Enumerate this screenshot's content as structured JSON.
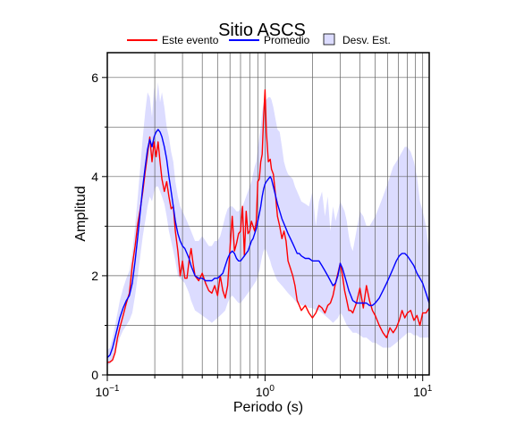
{
  "chart_data": {
    "type": "line",
    "title": "Sitio ASCS",
    "xlabel": "Periodo (s)",
    "ylabel": "Amplitud",
    "xscale": "log",
    "xlim": [
      0.1,
      11
    ],
    "ylim": [
      0,
      6.5
    ],
    "x_ticks": [
      {
        "value": 0.1,
        "base": "10",
        "exp": "−1"
      },
      {
        "value": 1,
        "base": "10",
        "exp": "0"
      },
      {
        "value": 10,
        "base": "10",
        "exp": "1"
      }
    ],
    "y_ticks": [
      {
        "value": 0,
        "label": "0"
      },
      {
        "value": 2,
        "label": "2"
      },
      {
        "value": 4,
        "label": "4"
      },
      {
        "value": 6,
        "label": "6"
      }
    ],
    "grid": true,
    "legend_position": "top",
    "colors": {
      "evento": "#ff0000",
      "promedio": "#0000ff",
      "desv_fill": "#dcdcff"
    },
    "series": [
      {
        "name": "Este evento",
        "color": "#ff0000",
        "x": [
          0.1,
          0.104,
          0.108,
          0.112,
          0.116,
          0.12,
          0.126,
          0.132,
          0.138,
          0.144,
          0.15,
          0.156,
          0.162,
          0.168,
          0.174,
          0.18,
          0.186,
          0.192,
          0.198,
          0.204,
          0.21,
          0.216,
          0.222,
          0.23,
          0.238,
          0.246,
          0.254,
          0.262,
          0.27,
          0.28,
          0.29,
          0.3,
          0.31,
          0.32,
          0.33,
          0.34,
          0.35,
          0.36,
          0.38,
          0.4,
          0.42,
          0.44,
          0.46,
          0.48,
          0.5,
          0.52,
          0.54,
          0.56,
          0.58,
          0.6,
          0.62,
          0.64,
          0.66,
          0.68,
          0.7,
          0.72,
          0.74,
          0.76,
          0.78,
          0.8,
          0.82,
          0.84,
          0.86,
          0.88,
          0.9,
          0.92,
          0.94,
          0.96,
          0.98,
          1.0,
          1.02,
          1.05,
          1.08,
          1.1,
          1.13,
          1.16,
          1.2,
          1.24,
          1.28,
          1.32,
          1.36,
          1.4,
          1.45,
          1.5,
          1.55,
          1.6,
          1.65,
          1.7,
          1.8,
          1.9,
          2.0,
          2.1,
          2.2,
          2.3,
          2.4,
          2.5,
          2.6,
          2.7,
          2.8,
          2.9,
          3.0,
          3.1,
          3.2,
          3.3,
          3.4,
          3.5,
          3.6,
          3.8,
          4.0,
          4.2,
          4.4,
          4.6,
          4.8,
          5.0,
          5.3,
          5.6,
          5.9,
          6.2,
          6.5,
          6.8,
          7.1,
          7.4,
          7.7,
          8.0,
          8.4,
          8.8,
          9.2,
          9.6,
          10.0,
          10.5,
          11.0
        ],
        "values": [
          0.25,
          0.26,
          0.3,
          0.45,
          0.75,
          0.95,
          1.2,
          1.45,
          1.65,
          2.2,
          2.6,
          3.05,
          3.35,
          3.7,
          4.1,
          4.45,
          4.8,
          4.3,
          4.7,
          4.4,
          4.7,
          4.3,
          3.95,
          3.7,
          3.9,
          3.6,
          3.35,
          3.4,
          2.9,
          2.5,
          2.0,
          2.3,
          1.95,
          1.95,
          2.3,
          2.55,
          2.25,
          2.0,
          1.9,
          2.05,
          1.85,
          1.7,
          1.65,
          1.8,
          1.6,
          2.0,
          1.7,
          1.55,
          1.8,
          2.55,
          3.2,
          2.5,
          2.65,
          2.85,
          2.9,
          3.4,
          2.4,
          3.3,
          2.85,
          2.9,
          3.1,
          3.0,
          2.9,
          3.1,
          3.9,
          3.95,
          4.3,
          4.45,
          5.2,
          5.75,
          4.9,
          4.3,
          4.35,
          4.15,
          4.05,
          3.7,
          3.2,
          3.0,
          2.75,
          2.9,
          2.7,
          2.3,
          2.15,
          2.0,
          1.8,
          1.5,
          1.4,
          1.3,
          1.4,
          1.25,
          1.15,
          1.25,
          1.4,
          1.35,
          1.25,
          1.4,
          1.45,
          1.6,
          1.85,
          2.05,
          2.25,
          2.0,
          1.7,
          1.5,
          1.3,
          1.3,
          1.25,
          1.45,
          1.75,
          1.35,
          1.8,
          1.5,
          1.3,
          1.2,
          1.0,
          0.85,
          0.75,
          0.95,
          0.85,
          0.95,
          1.1,
          1.3,
          1.15,
          1.25,
          1.3,
          1.1,
          1.2,
          1.0,
          1.25,
          1.25,
          1.35
        ]
      },
      {
        "name": "Promedio",
        "color": "#0000ff",
        "x": [
          0.1,
          0.104,
          0.108,
          0.112,
          0.116,
          0.12,
          0.126,
          0.132,
          0.138,
          0.144,
          0.15,
          0.156,
          0.162,
          0.168,
          0.174,
          0.18,
          0.186,
          0.192,
          0.198,
          0.204,
          0.21,
          0.216,
          0.222,
          0.23,
          0.238,
          0.246,
          0.254,
          0.262,
          0.27,
          0.28,
          0.29,
          0.3,
          0.31,
          0.32,
          0.33,
          0.34,
          0.35,
          0.36,
          0.38,
          0.4,
          0.42,
          0.44,
          0.46,
          0.48,
          0.5,
          0.52,
          0.54,
          0.56,
          0.58,
          0.6,
          0.62,
          0.64,
          0.66,
          0.68,
          0.7,
          0.72,
          0.74,
          0.76,
          0.78,
          0.8,
          0.82,
          0.84,
          0.86,
          0.88,
          0.9,
          0.92,
          0.94,
          0.96,
          0.98,
          1.0,
          1.02,
          1.05,
          1.08,
          1.1,
          1.13,
          1.16,
          1.2,
          1.24,
          1.28,
          1.32,
          1.36,
          1.4,
          1.45,
          1.5,
          1.55,
          1.6,
          1.65,
          1.7,
          1.8,
          1.9,
          2.0,
          2.1,
          2.2,
          2.3,
          2.4,
          2.5,
          2.6,
          2.7,
          2.8,
          2.9,
          3.0,
          3.1,
          3.2,
          3.3,
          3.4,
          3.5,
          3.6,
          3.8,
          4.0,
          4.2,
          4.4,
          4.6,
          4.8,
          5.0,
          5.3,
          5.6,
          5.9,
          6.2,
          6.5,
          6.8,
          7.1,
          7.4,
          7.7,
          8.0,
          8.4,
          8.8,
          9.2,
          9.6,
          10.0,
          10.5,
          11.0
        ],
        "values": [
          0.35,
          0.4,
          0.55,
          0.75,
          0.95,
          1.15,
          1.35,
          1.5,
          1.6,
          1.85,
          2.3,
          2.8,
          3.3,
          3.8,
          4.2,
          4.55,
          4.75,
          4.6,
          4.8,
          4.9,
          4.95,
          4.9,
          4.8,
          4.6,
          4.35,
          4.0,
          3.7,
          3.4,
          3.1,
          2.85,
          2.7,
          2.6,
          2.55,
          2.45,
          2.35,
          2.2,
          2.1,
          2.0,
          1.95,
          1.95,
          1.9,
          1.9,
          1.9,
          1.95,
          1.95,
          2.0,
          2.05,
          2.2,
          2.35,
          2.45,
          2.5,
          2.45,
          2.35,
          2.3,
          2.3,
          2.35,
          2.4,
          2.45,
          2.5,
          2.6,
          2.7,
          2.75,
          2.85,
          2.95,
          3.1,
          3.25,
          3.4,
          3.6,
          3.75,
          3.85,
          3.9,
          3.95,
          4.0,
          3.95,
          3.8,
          3.65,
          3.45,
          3.3,
          3.15,
          3.05,
          2.95,
          2.85,
          2.75,
          2.65,
          2.55,
          2.45,
          2.45,
          2.4,
          2.35,
          2.35,
          2.3,
          2.3,
          2.3,
          2.2,
          2.1,
          2.0,
          1.9,
          1.8,
          1.85,
          2.0,
          2.25,
          2.15,
          2.0,
          1.85,
          1.7,
          1.6,
          1.5,
          1.45,
          1.45,
          1.45,
          1.45,
          1.4,
          1.4,
          1.45,
          1.55,
          1.7,
          1.85,
          2.0,
          2.15,
          2.3,
          2.4,
          2.45,
          2.45,
          2.4,
          2.3,
          2.2,
          2.05,
          1.95,
          1.85,
          1.65,
          1.45
        ]
      }
    ],
    "band": {
      "name": "Desv. Est.",
      "color": "#dcdcff",
      "x": [
        0.1,
        0.104,
        0.108,
        0.112,
        0.116,
        0.12,
        0.126,
        0.132,
        0.138,
        0.144,
        0.15,
        0.156,
        0.162,
        0.168,
        0.174,
        0.18,
        0.186,
        0.192,
        0.198,
        0.204,
        0.21,
        0.216,
        0.222,
        0.23,
        0.238,
        0.246,
        0.254,
        0.262,
        0.27,
        0.28,
        0.29,
        0.3,
        0.31,
        0.32,
        0.33,
        0.34,
        0.35,
        0.36,
        0.38,
        0.4,
        0.42,
        0.44,
        0.46,
        0.48,
        0.5,
        0.52,
        0.54,
        0.56,
        0.58,
        0.6,
        0.62,
        0.64,
        0.66,
        0.68,
        0.7,
        0.72,
        0.74,
        0.76,
        0.78,
        0.8,
        0.82,
        0.84,
        0.86,
        0.88,
        0.9,
        0.92,
        0.94,
        0.96,
        0.98,
        1.0,
        1.02,
        1.05,
        1.08,
        1.1,
        1.13,
        1.16,
        1.2,
        1.24,
        1.28,
        1.32,
        1.36,
        1.4,
        1.45,
        1.5,
        1.55,
        1.6,
        1.65,
        1.7,
        1.8,
        1.9,
        2.0,
        2.1,
        2.2,
        2.3,
        2.4,
        2.5,
        2.6,
        2.7,
        2.8,
        2.9,
        3.0,
        3.1,
        3.2,
        3.3,
        3.4,
        3.5,
        3.6,
        3.8,
        4.0,
        4.2,
        4.4,
        4.6,
        4.8,
        5.0,
        5.3,
        5.6,
        5.9,
        6.2,
        6.5,
        6.8,
        7.1,
        7.4,
        7.7,
        8.0,
        8.4,
        8.8,
        9.2,
        9.6,
        10.0,
        10.5,
        11.0
      ],
      "upper": [
        0.5,
        0.55,
        0.75,
        1.0,
        1.25,
        1.5,
        1.75,
        1.95,
        2.1,
        2.45,
        3.0,
        3.6,
        4.2,
        4.8,
        5.3,
        5.7,
        5.6,
        5.2,
        5.8,
        5.5,
        5.9,
        5.5,
        5.7,
        5.4,
        5.0,
        4.8,
        4.5,
        4.3,
        3.9,
        3.6,
        3.4,
        3.3,
        3.2,
        3.1,
        3.0,
        2.9,
        2.8,
        2.7,
        2.7,
        2.8,
        2.7,
        2.6,
        2.6,
        2.7,
        2.7,
        2.8,
        3.0,
        3.2,
        3.35,
        3.4,
        3.4,
        3.35,
        3.3,
        3.3,
        3.35,
        3.4,
        3.5,
        3.6,
        3.7,
        3.8,
        3.9,
        4.05,
        4.2,
        4.3,
        4.55,
        4.8,
        5.0,
        5.3,
        5.5,
        5.55,
        5.55,
        5.6,
        5.6,
        5.55,
        5.4,
        5.2,
        4.95,
        4.9,
        4.6,
        4.3,
        4.15,
        4.05,
        4.0,
        3.95,
        3.8,
        3.7,
        3.6,
        3.5,
        3.45,
        3.4,
        3.7,
        3.0,
        3.5,
        3.7,
        3.2,
        3.6,
        2.9,
        3.4,
        3.1,
        3.3,
        3.5,
        3.4,
        3.3,
        3.1,
        2.8,
        2.6,
        2.5,
        2.9,
        3.3,
        3.2,
        3.0,
        3.0,
        3.1,
        3.2,
        3.4,
        3.6,
        3.8,
        4.0,
        4.2,
        4.3,
        4.4,
        4.5,
        4.6,
        4.6,
        4.5,
        4.3,
        4.0,
        3.5,
        3.3,
        3.0,
        2.5
      ],
      "lower": [
        0.2,
        0.22,
        0.3,
        0.45,
        0.6,
        0.75,
        0.9,
        1.0,
        1.1,
        1.25,
        1.6,
        2.0,
        2.4,
        2.8,
        3.1,
        3.4,
        3.6,
        3.5,
        3.7,
        3.8,
        3.8,
        3.7,
        3.6,
        3.45,
        3.2,
        2.9,
        2.7,
        2.5,
        2.3,
        2.0,
        1.95,
        1.9,
        1.85,
        1.75,
        1.65,
        1.5,
        1.4,
        1.3,
        1.25,
        1.2,
        1.15,
        1.1,
        1.05,
        1.1,
        1.15,
        1.2,
        1.25,
        1.3,
        1.45,
        1.55,
        1.6,
        1.55,
        1.5,
        1.45,
        1.45,
        1.5,
        1.55,
        1.6,
        1.65,
        1.7,
        1.75,
        1.8,
        1.85,
        1.9,
        2.0,
        2.1,
        2.25,
        2.4,
        2.5,
        2.55,
        2.5,
        2.4,
        2.3,
        2.2,
        2.1,
        2.0,
        1.9,
        1.85,
        1.8,
        1.75,
        1.7,
        1.65,
        1.6,
        1.55,
        1.5,
        1.45,
        1.45,
        1.4,
        1.4,
        1.35,
        1.35,
        1.3,
        1.3,
        1.25,
        1.2,
        1.15,
        1.1,
        1.05,
        1.1,
        1.15,
        1.25,
        1.2,
        1.1,
        1.0,
        0.95,
        0.9,
        0.85,
        0.85,
        0.8,
        0.75,
        0.75,
        0.7,
        0.65,
        0.65,
        0.6,
        0.55,
        0.55,
        0.55,
        0.6,
        0.65,
        0.7,
        0.75,
        0.8,
        0.85,
        0.85,
        0.8,
        0.8,
        0.75,
        0.75,
        0.75,
        0.75
      ]
    },
    "legend": [
      {
        "label": "Este evento",
        "kind": "line",
        "color": "#ff0000"
      },
      {
        "label": "Promedio",
        "kind": "line",
        "color": "#0000ff"
      },
      {
        "label": "Desv. Est.",
        "kind": "box",
        "color": "#dcdcff"
      }
    ]
  }
}
